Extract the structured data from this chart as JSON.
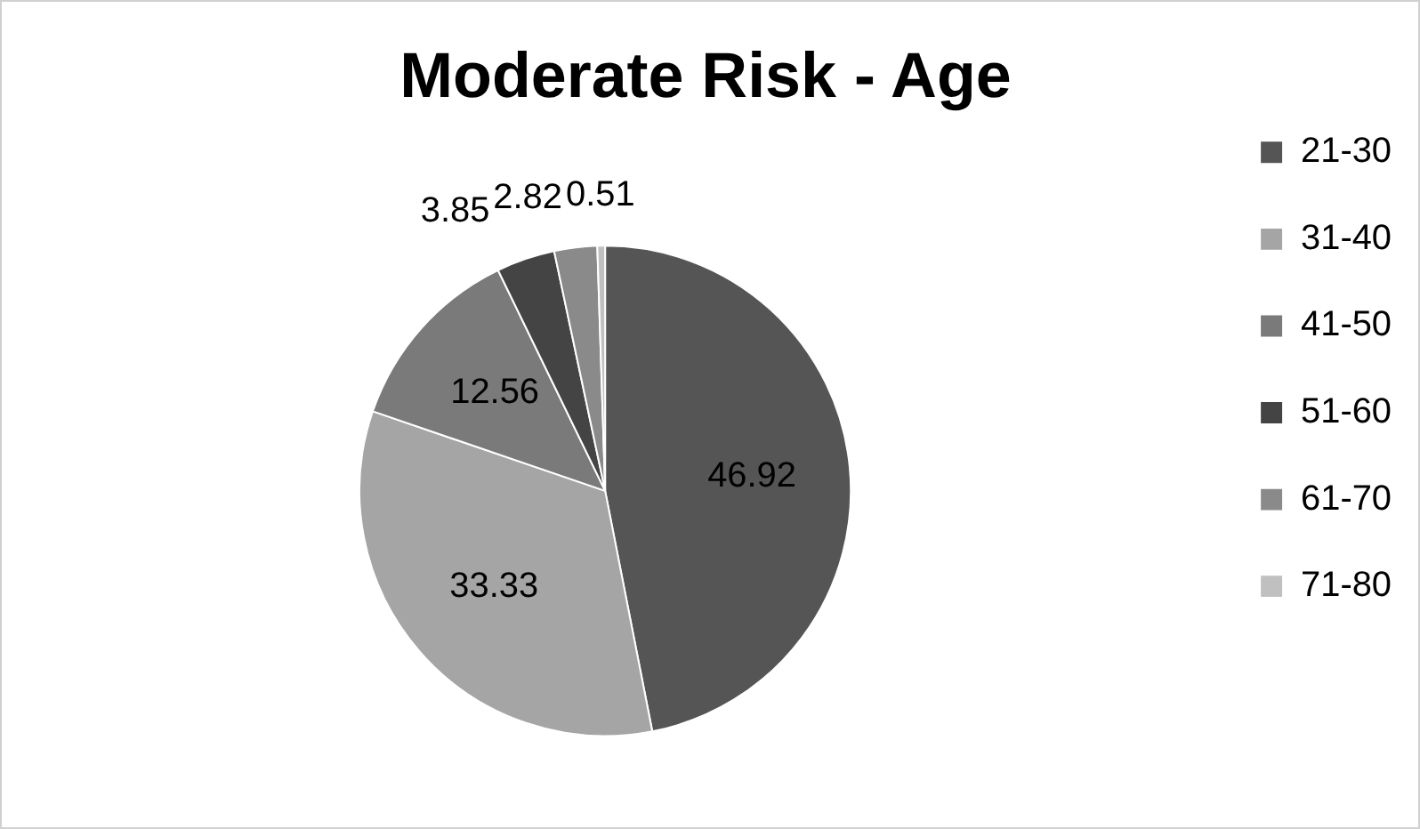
{
  "chart_data": {
    "type": "pie",
    "title": "Moderate Risk - Age",
    "categories": [
      "21-30",
      "31-40",
      "41-50",
      "51-60",
      "61-70",
      "71-80"
    ],
    "values": [
      46.92,
      33.33,
      12.56,
      3.85,
      2.82,
      0.51
    ],
    "colors": [
      "#555555",
      "#a5a5a5",
      "#7a7a7a",
      "#444444",
      "#8a8a8a",
      "#c0c0c0"
    ],
    "data_labels": true,
    "legend": "right"
  }
}
